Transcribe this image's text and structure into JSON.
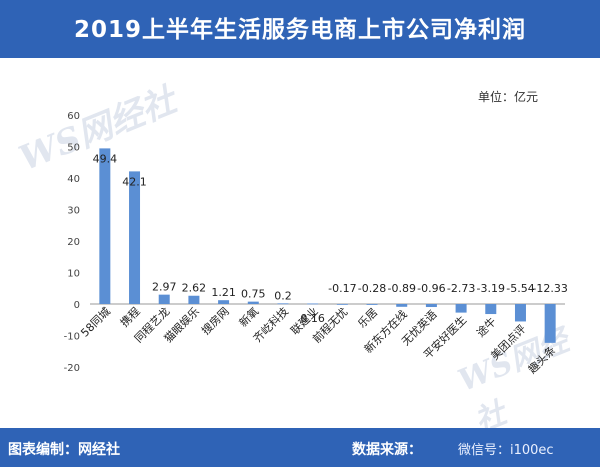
{
  "header": {
    "title": "2019上半年生活服务电商上市公司净利润"
  },
  "unit_label": "单位：亿元",
  "footer": {
    "left": "图表编制：网经社",
    "source": "数据来源：",
    "right": "微信号：i100ec"
  },
  "watermark": {
    "brand": "WS网经社"
  },
  "colors": {
    "header_bg": "#2f63b6",
    "bar": "#5b8fd4"
  },
  "chart_data": {
    "type": "bar",
    "title": "2019上半年生活服务电商上市公司净利润",
    "categories": [
      "58同城",
      "携程",
      "同程艺龙",
      "猫眼娱乐",
      "搜房网",
      "新氧",
      "齐屹科技",
      "联建业",
      "前程无忧",
      "乐居",
      "新东方在线",
      "无忧英语",
      "平安好医生",
      "途牛",
      "美团点评",
      "趣头条"
    ],
    "values": [
      49.4,
      42.1,
      2.97,
      2.62,
      1.21,
      0.75,
      0.2,
      0.16,
      -0.17,
      -0.28,
      -0.89,
      -0.96,
      -2.73,
      -3.19,
      -5.54,
      -12.33
    ],
    "data_labels": [
      "49.4",
      "42.1",
      "2.97",
      "2.62",
      "1.21",
      "0.75",
      "0.2",
      "0.16",
      "-0.17",
      "-0.28",
      "-0.89",
      "-0.96",
      "-2.73",
      "-3.19",
      "-5.54",
      "-12.33"
    ],
    "ylim": [
      -20,
      60
    ],
    "yticks": [
      "-20",
      "-10",
      "0",
      "10",
      "20",
      "30",
      "40",
      "50",
      "60"
    ],
    "xlabel": "",
    "ylabel": "",
    "grid": false,
    "legend": "none"
  }
}
